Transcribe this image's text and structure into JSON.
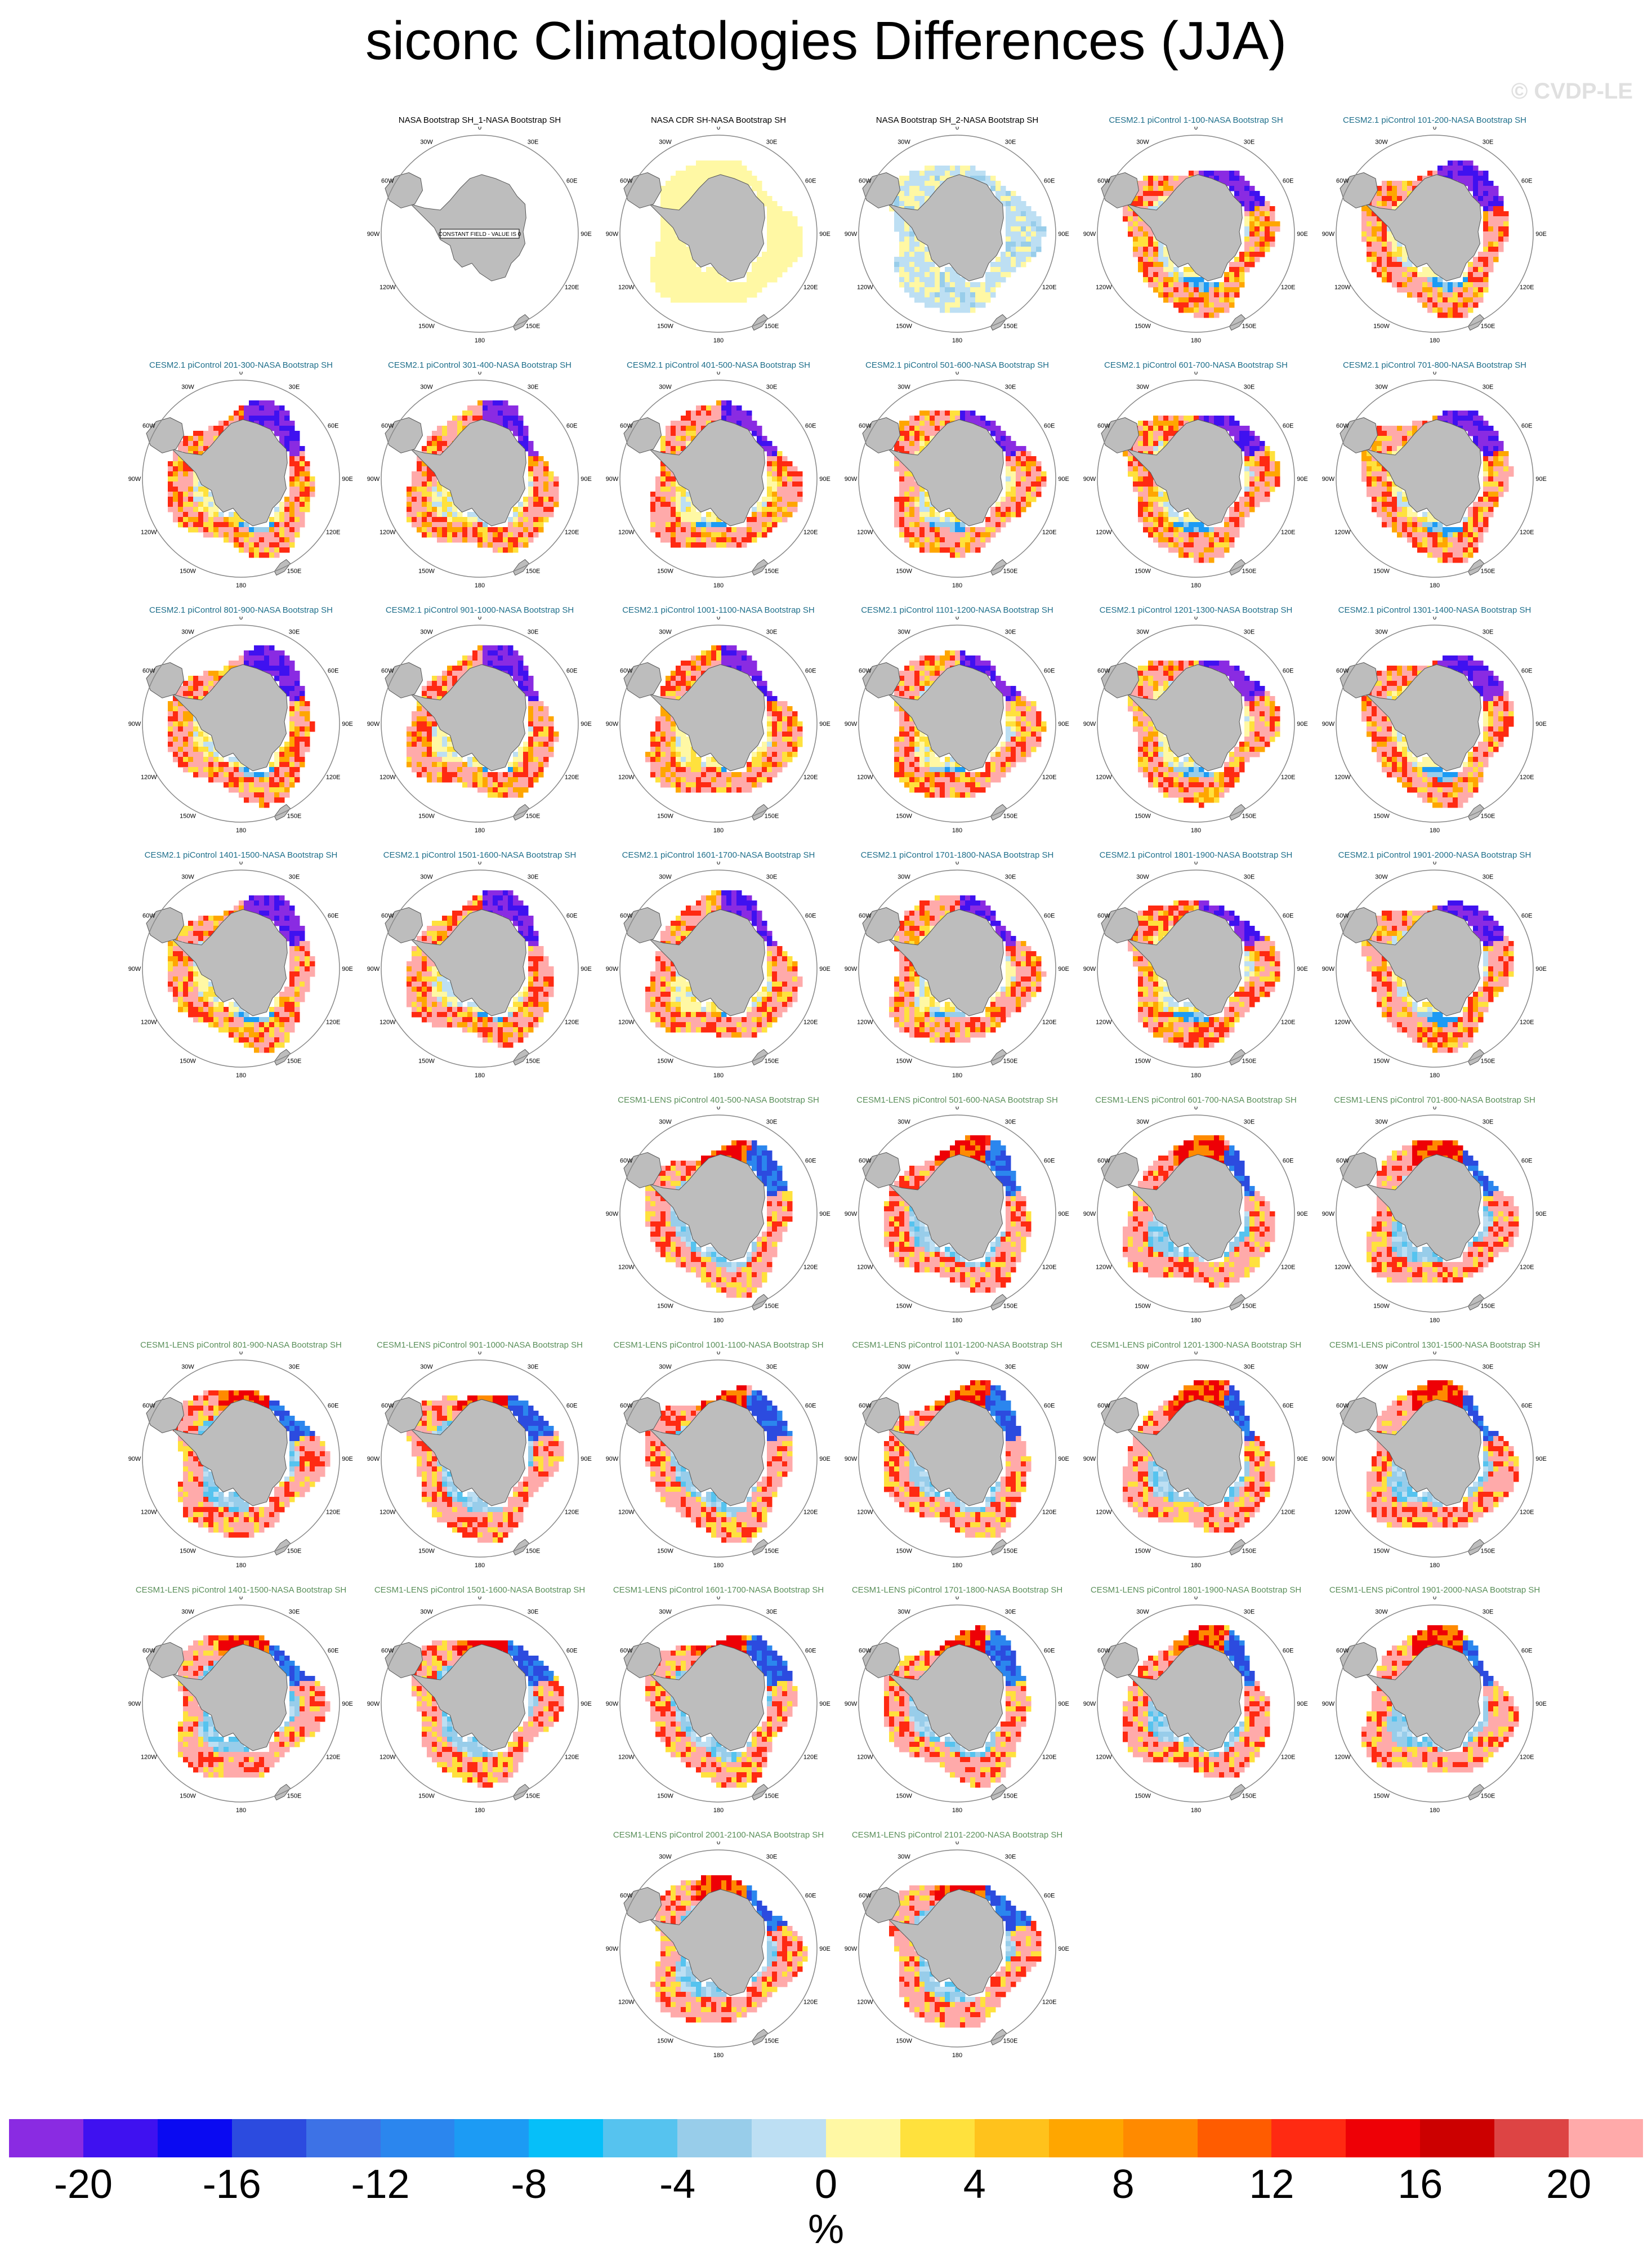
{
  "title": "siconc Climatologies Differences (JJA)",
  "watermark": "© CVDP-LE",
  "unit": "%",
  "colorbar": {
    "colors": [
      "#8a2be2",
      "#3f11f0",
      "#0a0af2",
      "#2c4bdf",
      "#3d72e6",
      "#2b86ee",
      "#1c9bf4",
      "#06bff9",
      "#56c3ef",
      "#98cdea",
      "#bddff3",
      "#fff8a4",
      "#ffe13d",
      "#ffc21c",
      "#ffa600",
      "#ff8a00",
      "#ff5c00",
      "#ff2a12",
      "#ee0006",
      "#cc0000",
      "#dd4444",
      "#ffaaaa"
    ],
    "labels": [
      "-20",
      "-16",
      "-12",
      "-8",
      "-4",
      "0",
      "4",
      "8",
      "12",
      "16",
      "20"
    ]
  },
  "map_labels": {
    "n": "0",
    "ne": "30E",
    "ene": "60E",
    "e": "90E",
    "ese": "120E",
    "se": "150E",
    "s": "180",
    "sw": "150W",
    "wsw": "120W",
    "w": "90W",
    "wnw": "60W",
    "nw": "30W"
  },
  "constant_field_label": "CONSTANT FIELD - VALUE IS 0",
  "panels": [
    {
      "title": "NASA Bootstrap SH_1-NASA Bootstrap SH",
      "group": "obs_const"
    },
    {
      "title": "NASA CDR SH-NASA Bootstrap SH",
      "group": "obs_yellow"
    },
    {
      "title": "NASA Bootstrap SH_2-NASA Bootstrap SH",
      "group": "obs_mixed"
    },
    {
      "title": "CESM2.1 piControl 1-100-NASA Bootstrap SH",
      "group": "cesm2"
    },
    {
      "title": "CESM2.1 piControl 101-200-NASA Bootstrap SH",
      "group": "cesm2"
    },
    {
      "title": "CESM2.1 piControl 201-300-NASA Bootstrap SH",
      "group": "cesm2"
    },
    {
      "title": "CESM2.1 piControl 301-400-NASA Bootstrap SH",
      "group": "cesm2"
    },
    {
      "title": "CESM2.1 piControl 401-500-NASA Bootstrap SH",
      "group": "cesm2"
    },
    {
      "title": "CESM2.1 piControl 501-600-NASA Bootstrap SH",
      "group": "cesm2"
    },
    {
      "title": "CESM2.1 piControl 601-700-NASA Bootstrap SH",
      "group": "cesm2"
    },
    {
      "title": "CESM2.1 piControl 701-800-NASA Bootstrap SH",
      "group": "cesm2"
    },
    {
      "title": "CESM2.1 piControl 801-900-NASA Bootstrap SH",
      "group": "cesm2"
    },
    {
      "title": "CESM2.1 piControl 901-1000-NASA Bootstrap SH",
      "group": "cesm2"
    },
    {
      "title": "CESM2.1 piControl 1001-1100-NASA Bootstrap SH",
      "group": "cesm2"
    },
    {
      "title": "CESM2.1 piControl 1101-1200-NASA Bootstrap SH",
      "group": "cesm2"
    },
    {
      "title": "CESM2.1 piControl 1201-1300-NASA Bootstrap SH",
      "group": "cesm2"
    },
    {
      "title": "CESM2.1 piControl 1301-1400-NASA Bootstrap SH",
      "group": "cesm2"
    },
    {
      "title": "CESM2.1 piControl 1401-1500-NASA Bootstrap SH",
      "group": "cesm2"
    },
    {
      "title": "CESM2.1 piControl 1501-1600-NASA Bootstrap SH",
      "group": "cesm2"
    },
    {
      "title": "CESM2.1 piControl 1601-1700-NASA Bootstrap SH",
      "group": "cesm2"
    },
    {
      "title": "CESM2.1 piControl 1701-1800-NASA Bootstrap SH",
      "group": "cesm2"
    },
    {
      "title": "CESM2.1 piControl 1801-1900-NASA Bootstrap SH",
      "group": "cesm2"
    },
    {
      "title": "CESM2.1 piControl 1901-2000-NASA Bootstrap SH",
      "group": "cesm2"
    },
    {
      "title": "CESM1-LENS piControl 401-500-NASA Bootstrap SH",
      "group": "cesm1"
    },
    {
      "title": "CESM1-LENS piControl 501-600-NASA Bootstrap SH",
      "group": "cesm1"
    },
    {
      "title": "CESM1-LENS piControl 601-700-NASA Bootstrap SH",
      "group": "cesm1"
    },
    {
      "title": "CESM1-LENS piControl 701-800-NASA Bootstrap SH",
      "group": "cesm1"
    },
    {
      "title": "CESM1-LENS piControl 801-900-NASA Bootstrap SH",
      "group": "cesm1"
    },
    {
      "title": "CESM1-LENS piControl 901-1000-NASA Bootstrap SH",
      "group": "cesm1"
    },
    {
      "title": "CESM1-LENS piControl 1001-1100-NASA Bootstrap SH",
      "group": "cesm1"
    },
    {
      "title": "CESM1-LENS piControl 1101-1200-NASA Bootstrap SH",
      "group": "cesm1"
    },
    {
      "title": "CESM1-LENS piControl 1201-1300-NASA Bootstrap SH",
      "group": "cesm1"
    },
    {
      "title": "CESM1-LENS piControl 1301-1500-NASA Bootstrap SH",
      "group": "cesm1"
    },
    {
      "title": "CESM1-LENS piControl 1401-1500-NASA Bootstrap SH",
      "group": "cesm1"
    },
    {
      "title": "CESM1-LENS piControl 1501-1600-NASA Bootstrap SH",
      "group": "cesm1"
    },
    {
      "title": "CESM1-LENS piControl 1601-1700-NASA Bootstrap SH",
      "group": "cesm1"
    },
    {
      "title": "CESM1-LENS piControl 1701-1800-NASA Bootstrap SH",
      "group": "cesm1"
    },
    {
      "title": "CESM1-LENS piControl 1801-1900-NASA Bootstrap SH",
      "group": "cesm1"
    },
    {
      "title": "CESM1-LENS piControl 1901-2000-NASA Bootstrap SH",
      "group": "cesm1"
    },
    {
      "title": "CESM1-LENS piControl 2001-2100-NASA Bootstrap SH",
      "group": "cesm1"
    },
    {
      "title": "CESM1-LENS piControl 2101-2200-NASA Bootstrap SH",
      "group": "cesm1"
    }
  ],
  "title_colors": {
    "obs_const": "#000000",
    "obs_yellow": "#000000",
    "obs_mixed": "#000000",
    "cesm2": "#1f6f8b",
    "cesm1": "#5a8f5a"
  }
}
